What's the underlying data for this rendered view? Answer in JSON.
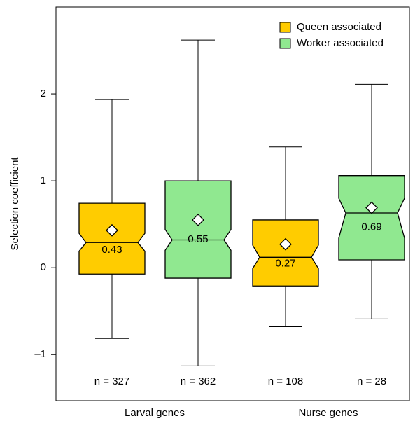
{
  "chart_data": {
    "type": "box",
    "y_label": "Selection coefficient",
    "categories": [
      "Larval genes",
      "Nurse genes"
    ],
    "ylim": [
      -1.53,
      3.0
    ],
    "yticks": [
      {
        "value": -1,
        "label": "–1"
      },
      0,
      1,
      2
    ],
    "legend": "top-right",
    "series": [
      {
        "name": "Queen associated",
        "color": "#ffcc00",
        "whisker_low": [
          -0.815,
          -0.68
        ],
        "q1": [
          -0.073,
          -0.21
        ],
        "median": [
          0.29,
          0.12
        ],
        "q3": [
          0.742,
          0.55
        ],
        "whisker_high": [
          1.935,
          1.39
        ],
        "notch_low": [
          0.19,
          -0.01
        ],
        "notch_high": [
          0.395,
          0.26
        ],
        "mean": [
          0.43,
          0.27
        ],
        "n_labels": [
          "n = 327",
          "n = 108"
        ]
      },
      {
        "name": "Worker associated",
        "color": "#90e890",
        "whisker_low": [
          -1.13,
          -0.59
        ],
        "q1": [
          -0.12,
          0.09
        ],
        "median": [
          0.32,
          0.63
        ],
        "q3": [
          1.0,
          1.06
        ],
        "whisker_high": [
          2.62,
          2.11
        ],
        "notch_low": [
          0.2,
          0.34
        ],
        "notch_high": [
          0.44,
          0.8
        ],
        "mean": [
          0.55,
          0.69
        ],
        "n_labels": [
          "n = 362",
          "n = 28"
        ]
      }
    ]
  }
}
